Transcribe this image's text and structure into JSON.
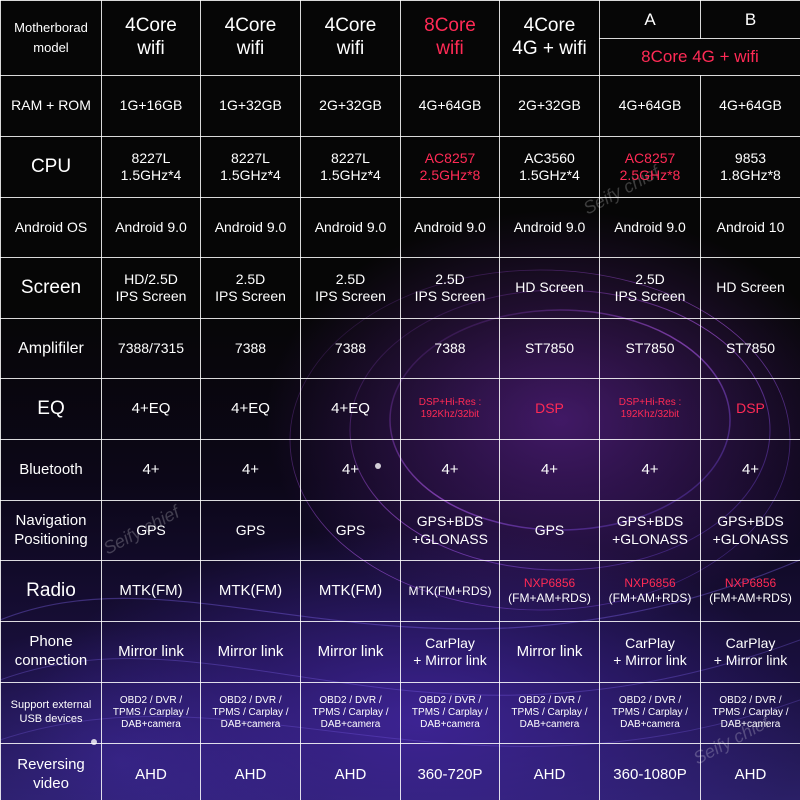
{
  "colors": {
    "accent": "#ff2a55",
    "border": "#ffffff",
    "background": "#050505"
  },
  "header": {
    "model_label": "Motherborad model",
    "group_ab_label": "8Core 4G + wifi",
    "columns": [
      {
        "line1": "4Core",
        "line2": "wifi"
      },
      {
        "line1": "4Core",
        "line2": "wifi"
      },
      {
        "line1": "4Core",
        "line2": "wifi"
      },
      {
        "line1": "8Core",
        "line2": "wifi"
      },
      {
        "line1": "4Core",
        "line2": "4G + wifi"
      },
      {
        "line1": "A"
      },
      {
        "line1": "B"
      }
    ]
  },
  "rows": [
    {
      "label": "RAM + ROM",
      "cells": [
        {
          "l1": "1G+16GB"
        },
        {
          "l1": "1G+32GB"
        },
        {
          "l1": "2G+32GB"
        },
        {
          "l1": "4G+64GB"
        },
        {
          "l1": "2G+32GB"
        },
        {
          "l1": "4G+64GB"
        },
        {
          "l1": "4G+64GB"
        }
      ]
    },
    {
      "label": "CPU",
      "cells": [
        {
          "l1": "8227L",
          "l2": "1.5GHz*4"
        },
        {
          "l1": "8227L",
          "l2": "1.5GHz*4"
        },
        {
          "l1": "8227L",
          "l2": "1.5GHz*4"
        },
        {
          "l1": "AC8257",
          "l2": "2.5GHz*8"
        },
        {
          "l1": "AC3560",
          "l2": "1.5GHz*4"
        },
        {
          "l1": "AC8257",
          "l2": "2.5GHz*8"
        },
        {
          "l1": "9853",
          "l2": "1.8GHz*8"
        }
      ]
    },
    {
      "label": "Android OS",
      "cells": [
        {
          "l1": "Android 9.0"
        },
        {
          "l1": "Android 9.0"
        },
        {
          "l1": "Android 9.0"
        },
        {
          "l1": "Android 9.0"
        },
        {
          "l1": "Android 9.0"
        },
        {
          "l1": "Android 9.0"
        },
        {
          "l1": "Android 10"
        }
      ]
    },
    {
      "label": "Screen",
      "cells": [
        {
          "l1": "HD/2.5D",
          "l2": "IPS Screen"
        },
        {
          "l1": "2.5D",
          "l2": "IPS Screen"
        },
        {
          "l1": "2.5D",
          "l2": "IPS Screen"
        },
        {
          "l1": "2.5D",
          "l2": "IPS Screen"
        },
        {
          "l1": "HD Screen"
        },
        {
          "l1": "2.5D",
          "l2": "IPS Screen"
        },
        {
          "l1": "HD Screen"
        }
      ]
    },
    {
      "label": "Amplifiler",
      "cells": [
        {
          "l1": "7388/7315"
        },
        {
          "l1": "7388"
        },
        {
          "l1": "7388"
        },
        {
          "l1": "7388"
        },
        {
          "l1": "ST7850"
        },
        {
          "l1": "ST7850"
        },
        {
          "l1": "ST7850"
        }
      ]
    },
    {
      "label": "EQ",
      "cells": [
        {
          "l1": "4+EQ"
        },
        {
          "l1": "4+EQ"
        },
        {
          "l1": "4+EQ"
        },
        {
          "l1": "DSP+Hi-Res :",
          "l2": "192Khz/32bit"
        },
        {
          "l1": "DSP"
        },
        {
          "l1": "DSP+Hi-Res :",
          "l2": "192Khz/32bit"
        },
        {
          "l1": "DSP"
        }
      ]
    },
    {
      "label": "Bluetooth",
      "cells": [
        {
          "l1": "4+"
        },
        {
          "l1": "4+"
        },
        {
          "l1": "4+"
        },
        {
          "l1": "4+"
        },
        {
          "l1": "4+"
        },
        {
          "l1": "4+"
        },
        {
          "l1": "4+"
        }
      ]
    },
    {
      "label": "Navigation Positioning",
      "label_l1": "Navigation",
      "label_l2": "Positioning",
      "cells": [
        {
          "l1": "GPS"
        },
        {
          "l1": "GPS"
        },
        {
          "l1": "GPS"
        },
        {
          "l1": "GPS+BDS",
          "l2": "+GLONASS"
        },
        {
          "l1": "GPS"
        },
        {
          "l1": "GPS+BDS",
          "l2": "+GLONASS"
        },
        {
          "l1": "GPS+BDS",
          "l2": "+GLONASS"
        }
      ]
    },
    {
      "label": "Radio",
      "cells": [
        {
          "l1": "MTK(FM)"
        },
        {
          "l1": "MTK(FM)"
        },
        {
          "l1": "MTK(FM)"
        },
        {
          "l1": "MTK(FM+RDS)"
        },
        {
          "l1": "NXP6856",
          "l2": "(FM+AM+RDS)"
        },
        {
          "l1": "NXP6856",
          "l2": "(FM+AM+RDS)"
        },
        {
          "l1": "NXP6856",
          "l2": "(FM+AM+RDS)"
        }
      ]
    },
    {
      "label": "Phone connection",
      "label_l1": "Phone",
      "label_l2": "connection",
      "cells": [
        {
          "l1": "Mirror link"
        },
        {
          "l1": "Mirror link"
        },
        {
          "l1": "Mirror link"
        },
        {
          "l1": "CarPlay",
          "l2": "+ Mirror link"
        },
        {
          "l1": "Mirror link"
        },
        {
          "l1": "CarPlay",
          "l2": "+ Mirror link"
        },
        {
          "l1": "CarPlay",
          "l2": "+ Mirror link"
        }
      ]
    },
    {
      "label": "Support external USB devices",
      "label_l1": "Support external",
      "label_l2": "USB devices",
      "cells": [
        {
          "l1": "OBD2 / DVR /",
          "l2": "TPMS / Carplay /",
          "l3": "DAB+camera"
        },
        {
          "l1": "OBD2 / DVR /",
          "l2": "TPMS / Carplay /",
          "l3": "DAB+camera"
        },
        {
          "l1": "OBD2 / DVR /",
          "l2": "TPMS / Carplay /",
          "l3": "DAB+camera"
        },
        {
          "l1": "OBD2 / DVR /",
          "l2": "TPMS / Carplay /",
          "l3": "DAB+camera"
        },
        {
          "l1": "OBD2 / DVR /",
          "l2": "TPMS / Carplay /",
          "l3": "DAB+camera"
        },
        {
          "l1": "OBD2 / DVR /",
          "l2": "TPMS / Carplay /",
          "l3": "DAB+camera"
        },
        {
          "l1": "OBD2 / DVR /",
          "l2": "TPMS / Carplay /",
          "l3": "DAB+camera"
        }
      ]
    },
    {
      "label": "Reversing video",
      "label_l1": "Reversing",
      "label_l2": "video",
      "cells": [
        {
          "l1": "AHD"
        },
        {
          "l1": "AHD"
        },
        {
          "l1": "AHD"
        },
        {
          "l1": "360-720P"
        },
        {
          "l1": "AHD"
        },
        {
          "l1": "360-1080P"
        },
        {
          "l1": "AHD"
        }
      ]
    }
  ],
  "watermark": "Seify chief"
}
